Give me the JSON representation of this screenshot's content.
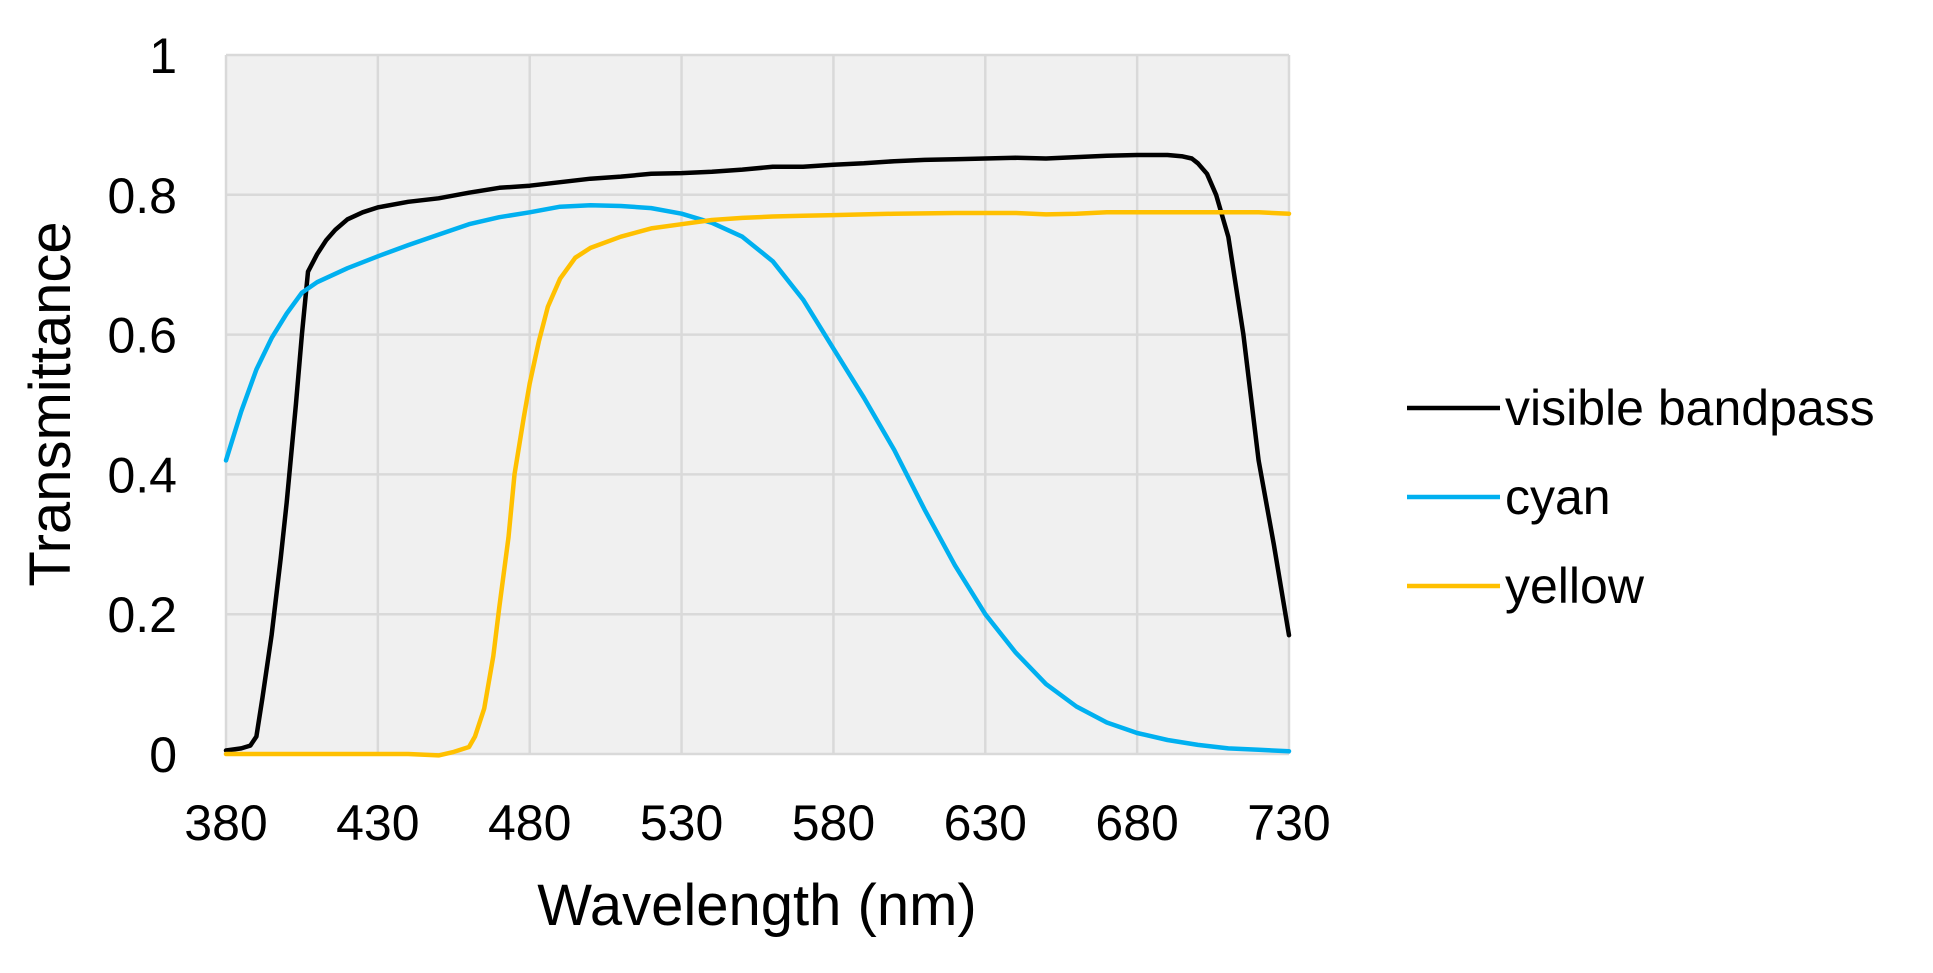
{
  "chart_data": {
    "type": "line",
    "title": "",
    "xlabel": "Wavelength (nm)",
    "ylabel": "Transmittance",
    "xlim": [
      380,
      730
    ],
    "ylim": [
      0,
      1
    ],
    "x_ticks": [
      "380",
      "430",
      "480",
      "530",
      "580",
      "630",
      "680",
      "730"
    ],
    "y_ticks": [
      "0",
      "0.2",
      "0.4",
      "0.6",
      "0.8",
      "1"
    ],
    "grid": true,
    "plot_background": "#f0f0f0",
    "grid_color": "#d9d9d9",
    "legend_position": "right",
    "series": [
      {
        "name": "visible bandpass",
        "color": "#000000",
        "x": [
          380,
          385,
          388,
          390,
          392,
          395,
          398,
          400,
          403,
          405,
          407,
          410,
          413,
          416,
          420,
          425,
          430,
          440,
          450,
          460,
          470,
          480,
          490,
          500,
          510,
          520,
          530,
          540,
          550,
          560,
          570,
          580,
          590,
          600,
          610,
          620,
          630,
          640,
          650,
          660,
          670,
          680,
          690,
          695,
          698,
          700,
          703,
          706,
          710,
          715,
          720,
          725,
          730
        ],
        "y": [
          0.005,
          0.008,
          0.012,
          0.025,
          0.08,
          0.17,
          0.28,
          0.36,
          0.5,
          0.6,
          0.69,
          0.715,
          0.735,
          0.75,
          0.765,
          0.775,
          0.782,
          0.79,
          0.795,
          0.803,
          0.81,
          0.813,
          0.818,
          0.823,
          0.826,
          0.83,
          0.831,
          0.833,
          0.836,
          0.84,
          0.84,
          0.843,
          0.845,
          0.848,
          0.85,
          0.851,
          0.852,
          0.853,
          0.852,
          0.854,
          0.856,
          0.857,
          0.857,
          0.855,
          0.852,
          0.845,
          0.83,
          0.8,
          0.74,
          0.6,
          0.42,
          0.3,
          0.17
        ]
      },
      {
        "name": "cyan",
        "color": "#00b0f0",
        "x": [
          380,
          385,
          390,
          395,
          400,
          405,
          410,
          420,
          430,
          440,
          450,
          460,
          470,
          480,
          490,
          500,
          510,
          520,
          530,
          540,
          550,
          560,
          570,
          580,
          590,
          600,
          610,
          620,
          630,
          640,
          650,
          660,
          670,
          680,
          690,
          700,
          710,
          720,
          730
        ],
        "y": [
          0.42,
          0.49,
          0.55,
          0.595,
          0.63,
          0.66,
          0.675,
          0.695,
          0.712,
          0.728,
          0.743,
          0.758,
          0.768,
          0.775,
          0.783,
          0.785,
          0.784,
          0.781,
          0.773,
          0.76,
          0.74,
          0.705,
          0.65,
          0.58,
          0.51,
          0.435,
          0.35,
          0.27,
          0.2,
          0.145,
          0.1,
          0.068,
          0.045,
          0.03,
          0.02,
          0.013,
          0.008,
          0.006,
          0.004
        ]
      },
      {
        "name": "yellow",
        "color": "#ffc000",
        "x": [
          380,
          400,
          420,
          440,
          450,
          455,
          460,
          462,
          465,
          468,
          470,
          473,
          475,
          478,
          480,
          483,
          486,
          490,
          495,
          500,
          510,
          520,
          530,
          540,
          550,
          560,
          570,
          580,
          590,
          600,
          620,
          640,
          650,
          660,
          670,
          680,
          700,
          720,
          730
        ],
        "y": [
          0,
          0,
          0,
          0,
          -0.002,
          0.003,
          0.01,
          0.025,
          0.065,
          0.14,
          0.21,
          0.31,
          0.4,
          0.48,
          0.53,
          0.59,
          0.64,
          0.68,
          0.71,
          0.724,
          0.74,
          0.752,
          0.758,
          0.764,
          0.767,
          0.769,
          0.77,
          0.771,
          0.772,
          0.773,
          0.774,
          0.774,
          0.772,
          0.773,
          0.775,
          0.775,
          0.775,
          0.775,
          0.773
        ]
      }
    ]
  }
}
